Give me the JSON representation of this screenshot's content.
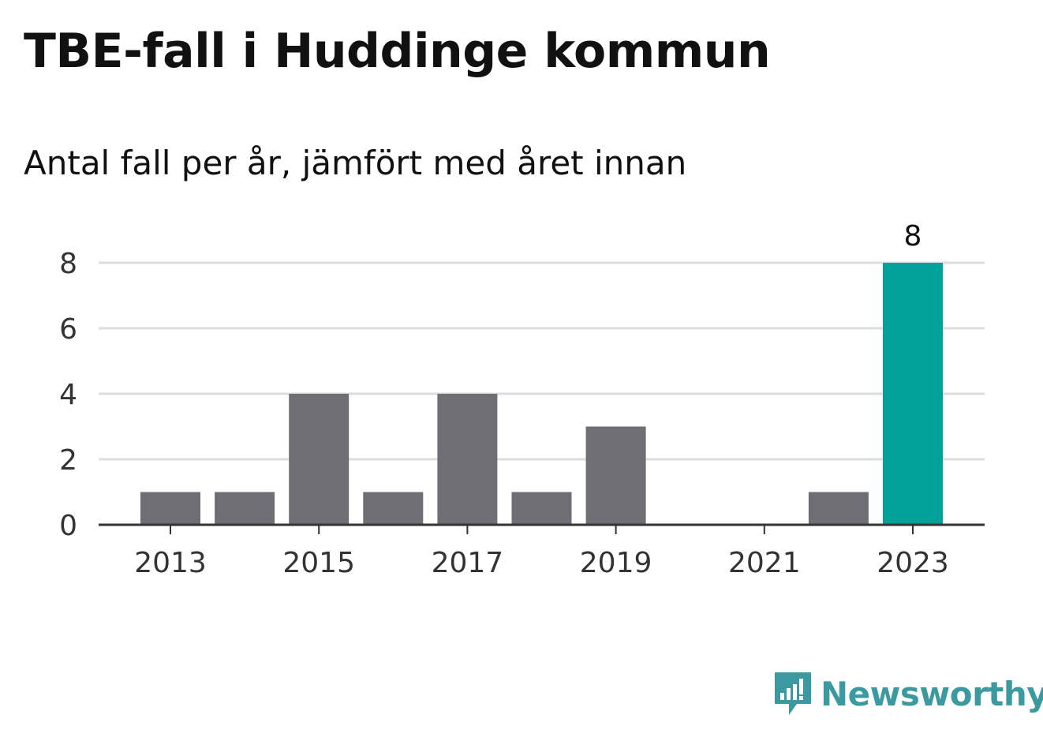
{
  "header": {
    "title": "TBE-fall i Huddinge kommun",
    "subtitle": "Antal fall per år, jämfört med året innan"
  },
  "brand": {
    "name": "Newsworthy",
    "color": "#3a9aa0"
  },
  "colors": {
    "bar": "#6f6e74",
    "highlight": "#00a29a",
    "grid": "#dddddd",
    "axis": "#333333"
  },
  "chart_data": {
    "type": "bar",
    "categories": [
      "2013",
      "2014",
      "2015",
      "2016",
      "2017",
      "2018",
      "2019",
      "2020",
      "2021",
      "2022",
      "2023"
    ],
    "values": [
      1,
      1,
      4,
      1,
      4,
      1,
      3,
      0,
      0,
      1,
      8
    ],
    "highlight_index": 10,
    "highlight_label": "8",
    "xtick_labels": [
      "2013",
      "2015",
      "2017",
      "2019",
      "2021",
      "2023"
    ],
    "yticks": [
      0,
      2,
      4,
      6,
      8
    ],
    "ylim": [
      0,
      8
    ],
    "grid": true,
    "xlabel": "",
    "ylabel": ""
  }
}
